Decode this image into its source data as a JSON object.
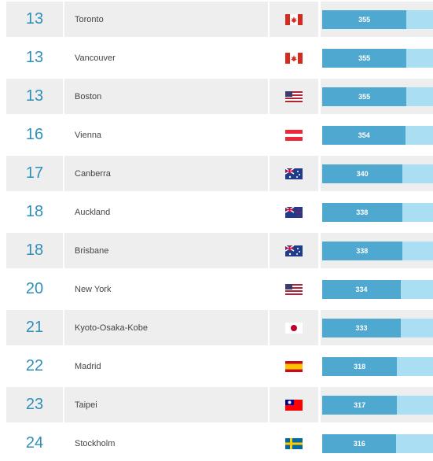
{
  "rows": [
    {
      "rank": "13",
      "city": "Toronto",
      "flag": "canada-flag-icon",
      "score": "355",
      "score_fraction": 0.76
    },
    {
      "rank": "13",
      "city": "Vancouver",
      "flag": "canada-flag-icon",
      "score": "355",
      "score_fraction": 0.76
    },
    {
      "rank": "13",
      "city": "Boston",
      "flag": "usa-flag-icon",
      "score": "355",
      "score_fraction": 0.76
    },
    {
      "rank": "16",
      "city": "Vienna",
      "flag": "austria-flag-icon",
      "score": "354",
      "score_fraction": 0.755
    },
    {
      "rank": "17",
      "city": "Canberra",
      "flag": "australia-flag-icon",
      "score": "340",
      "score_fraction": 0.725
    },
    {
      "rank": "18",
      "city": "Auckland",
      "flag": "new-zealand-flag-icon",
      "score": "338",
      "score_fraction": 0.72
    },
    {
      "rank": "18",
      "city": "Brisbane",
      "flag": "australia-flag-icon",
      "score": "338",
      "score_fraction": 0.72
    },
    {
      "rank": "20",
      "city": "New York",
      "flag": "usa-flag-icon",
      "score": "334",
      "score_fraction": 0.71
    },
    {
      "rank": "21",
      "city": "Kyoto-Osaka-Kobe",
      "flag": "japan-flag-icon",
      "score": "333",
      "score_fraction": 0.71
    },
    {
      "rank": "22",
      "city": "Madrid",
      "flag": "spain-flag-icon",
      "score": "318",
      "score_fraction": 0.675
    },
    {
      "rank": "23",
      "city": "Taipei",
      "flag": "taiwan-flag-icon",
      "score": "317",
      "score_fraction": 0.675
    },
    {
      "rank": "24",
      "city": "Stockholm",
      "flag": "sweden-flag-icon",
      "score": "316",
      "score_fraction": 0.67
    }
  ],
  "colors": {
    "rank_text": "#2e8fb8",
    "bar_fill": "#4fa8cf",
    "bar_track": "#a9def3",
    "row_shade": "#eeeeef"
  }
}
